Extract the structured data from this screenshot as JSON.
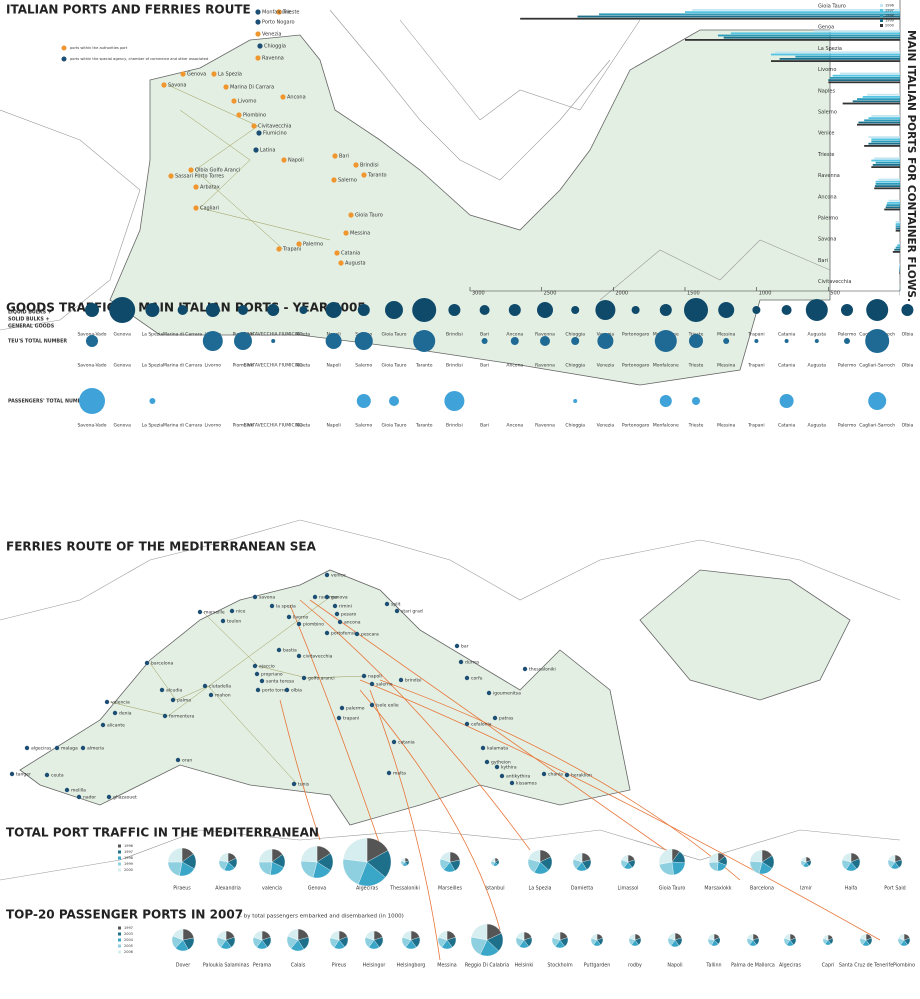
{
  "italian_map": {
    "title": "ITALIAN PORTS AND FERRIES ROUTE",
    "legend": [
      {
        "label": "ports within the authorities port",
        "color": "#f0962e"
      },
      {
        "label": "ports within the special agency, chamber of commerce and other associated",
        "color": "#1d4e73"
      }
    ],
    "ports": [
      {
        "name": "Trieste",
        "color": "#f0962e"
      },
      {
        "name": "Monfalcone",
        "color": "#1d4e73"
      },
      {
        "name": "Porto Nogaro",
        "color": "#1d4e73"
      },
      {
        "name": "Venezia",
        "color": "#f0962e"
      },
      {
        "name": "Chioggia",
        "color": "#1d4e73"
      },
      {
        "name": "Ravenna",
        "color": "#f0962e"
      },
      {
        "name": "Ancona",
        "color": "#f0962e"
      },
      {
        "name": "Genova",
        "color": "#f0962e"
      },
      {
        "name": "La Spezia",
        "color": "#f0962e"
      },
      {
        "name": "Savona",
        "color": "#f0962e"
      },
      {
        "name": "Marina Di Carrara",
        "color": "#f0962e"
      },
      {
        "name": "Livorno",
        "color": "#f0962e"
      },
      {
        "name": "Piombino",
        "color": "#f0962e"
      },
      {
        "name": "Civitavecchia",
        "color": "#f0962e"
      },
      {
        "name": "Fiumicino",
        "color": "#1d4e73"
      },
      {
        "name": "Latina",
        "color": "#1d4e73"
      },
      {
        "name": "Napoli",
        "color": "#f0962e"
      },
      {
        "name": "Salerno",
        "color": "#f0962e"
      },
      {
        "name": "Bari",
        "color": "#f0962e"
      },
      {
        "name": "Brindisi",
        "color": "#f0962e"
      },
      {
        "name": "Taranto",
        "color": "#f0962e"
      },
      {
        "name": "Olbia Golfo Aranci",
        "color": "#f0962e"
      },
      {
        "name": "Sassari Porto Torres",
        "color": "#f0962e"
      },
      {
        "name": "Arbatax",
        "color": "#f0962e"
      },
      {
        "name": "Cagliari",
        "color": "#f0962e"
      },
      {
        "name": "Gioia Tauro",
        "color": "#f0962e"
      },
      {
        "name": "Messina",
        "color": "#f0962e"
      },
      {
        "name": "Palermo",
        "color": "#f0962e"
      },
      {
        "name": "Trapani",
        "color": "#f0962e"
      },
      {
        "name": "Catania",
        "color": "#f0962e"
      },
      {
        "name": "Augusta",
        "color": "#f0962e"
      }
    ]
  },
  "container_chart": {
    "type": "bar",
    "title": "MAIN ITALIAN PORTS FOR CONTAINER FLOWS.",
    "categories": [
      "Gioia Tauro",
      "Genoa",
      "La Spezia",
      "Livorno",
      "Naples",
      "Salerno",
      "Venice",
      "Trieste",
      "Ravenna",
      "Ancona",
      "Palermo",
      "Savona",
      "Bari",
      "Civitavecchia"
    ],
    "series": [
      {
        "name": "1996",
        "color": "#c4e6f1",
        "values": [
          1450,
          600,
          870,
          420,
          230,
          200,
          220,
          180,
          150,
          80,
          30,
          10,
          5,
          2
        ]
      },
      {
        "name": "1997",
        "color": "#55c4e2",
        "values": [
          1500,
          1180,
          900,
          470,
          260,
          220,
          200,
          200,
          170,
          90,
          30,
          20,
          5,
          2
        ]
      },
      {
        "name": "1998",
        "color": "#2a9ab8",
        "values": [
          2100,
          1270,
          730,
          490,
          300,
          250,
          200,
          170,
          170,
          95,
          30,
          30,
          5,
          2
        ]
      },
      {
        "name": "1999",
        "color": "#1a6e8a",
        "values": [
          2250,
          1230,
          840,
          500,
          330,
          290,
          220,
          190,
          175,
          100,
          30,
          40,
          5,
          2
        ]
      },
      {
        "name": "2000",
        "color": "#333333",
        "values": [
          2650,
          1500,
          900,
          500,
          400,
          300,
          250,
          200,
          180,
          110,
          30,
          50,
          5,
          2
        ]
      }
    ],
    "xlim": [
      0,
      3000
    ],
    "xticks": [
      3000,
      2500,
      2000,
      1500,
      1000,
      500
    ]
  },
  "goods_traffic": {
    "title": "GOODS TRAFFIC IN MAIN ITALIAN PORTS - YEAR 2005",
    "ports": [
      "Savona-Vado",
      "Genova",
      "La Spezia",
      "Marina di Carrara",
      "Livorno",
      "Piombino",
      "CIVITAVECCHIA FIUMICINO",
      "Gaeta",
      "Napoli",
      "Salerno",
      "Gioia Tauro",
      "Taranto",
      "Brindisi",
      "Bari",
      "Ancona",
      "Ravenna",
      "Chioggia",
      "Venezia",
      "Portonogaro",
      "Monfalcone",
      "Trieste",
      "Messina",
      "Trapani",
      "Catania",
      "Augusta",
      "Palermo",
      "Cagliari-Sarroch",
      "Olbia"
    ],
    "rows": [
      {
        "label": [
          "LIQUID BULKS +",
          "SOLID BULKS +",
          "GENERAL GOODS"
        ],
        "color": "#0f4a6b",
        "sizes": [
          7,
          13,
          7,
          5,
          7,
          5,
          6,
          4,
          8,
          6,
          9,
          12,
          6,
          5,
          6,
          8,
          4,
          10,
          4,
          6,
          12,
          8,
          4,
          5,
          11,
          6,
          11,
          6
        ]
      },
      {
        "label": [
          "TEU'S TOTAL NUMBER"
        ],
        "color": "#1f6a94",
        "sizes": [
          6,
          null,
          null,
          null,
          10,
          9,
          2,
          null,
          8,
          9,
          null,
          11,
          null,
          3,
          4,
          5,
          4,
          8,
          null,
          11,
          7,
          3,
          2,
          2,
          2,
          3,
          12,
          null
        ]
      },
      {
        "label": [
          "PASSENGERS' TOTAL NUMBER"
        ],
        "color": "#3fa2d8",
        "sizes": [
          13,
          null,
          3,
          null,
          null,
          null,
          null,
          null,
          null,
          7,
          5,
          null,
          10,
          null,
          null,
          null,
          2,
          null,
          null,
          6,
          4,
          null,
          null,
          7,
          null,
          null,
          9,
          null
        ]
      }
    ]
  },
  "ferries_map": {
    "title": "FERRIES ROUTE OF THE MEDITERRANEAN SEA",
    "ports": [
      "venice",
      "ravenna",
      "genova",
      "savona",
      "la spezia",
      "livorno",
      "piombino",
      "portoferraio",
      "rimini",
      "pesaro",
      "ancona",
      "split",
      "stari grad",
      "pescara",
      "bar",
      "durres",
      "brindisi",
      "corfu",
      "igoumenitsa",
      "patras",
      "cefalonia",
      "kalamata",
      "gytheion",
      "kythira",
      "antikythira",
      "kissamos",
      "chania",
      "heraklion",
      "thessaloniki",
      "marseille",
      "nice",
      "toulon",
      "barcelona",
      "valencia",
      "denia",
      "alicante",
      "almeria",
      "malaga",
      "algeciras",
      "tanger",
      "ceuta",
      "melilla",
      "nador",
      "ghazaouet",
      "oran",
      "alcudia",
      "ciutadella",
      "mahon",
      "palma",
      "formentera",
      "bastia",
      "ajaccio",
      "propriano",
      "santa teresa",
      "porto torres",
      "olbia",
      "golfo aranci",
      "civitavecchia",
      "napoli",
      "salerno",
      "isole eolie",
      "palermo",
      "trapani",
      "catania",
      "malta",
      "tunis"
    ]
  },
  "port_traffic": {
    "type": "pie",
    "title": "TOTAL PORT TRAFFIC IN THE MEDITERRANEAN",
    "legend": [
      {
        "name": "1996",
        "color": "#555555"
      },
      {
        "name": "1997",
        "color": "#1d6f8a"
      },
      {
        "name": "1998",
        "color": "#3aa6c8"
      },
      {
        "name": "1999",
        "color": "#8fd0e0"
      },
      {
        "name": "2000",
        "color": "#d7eef0"
      }
    ],
    "pies": [
      {
        "name": "Piraeus",
        "size": 14,
        "values": [
          15,
          18,
          20,
          22,
          25
        ]
      },
      {
        "name": "Alexandria",
        "size": 9,
        "values": [
          18,
          19,
          20,
          21,
          22
        ]
      },
      {
        "name": "valencia",
        "size": 13,
        "values": [
          15,
          17,
          20,
          23,
          25
        ]
      },
      {
        "name": "Genova",
        "size": 16,
        "values": [
          16,
          18,
          20,
          22,
          24
        ]
      },
      {
        "name": "Algeciras",
        "size": 24,
        "values": [
          17,
          19,
          20,
          21,
          23
        ]
      },
      {
        "name": "Thessaloniki",
        "size": 4,
        "values": [
          20,
          20,
          20,
          20,
          20
        ]
      },
      {
        "name": "Marseilles",
        "size": 10,
        "values": [
          22,
          20,
          19,
          19,
          20
        ]
      },
      {
        "name": "Istanbul",
        "size": 4,
        "values": [
          18,
          19,
          20,
          21,
          22
        ]
      },
      {
        "name": "La Spezia",
        "size": 12,
        "values": [
          18,
          19,
          21,
          21,
          21
        ]
      },
      {
        "name": "Damietta",
        "size": 9,
        "values": [
          21,
          20,
          20,
          19,
          20
        ]
      },
      {
        "name": "Limassol",
        "size": 7,
        "values": [
          20,
          20,
          20,
          20,
          20
        ]
      },
      {
        "name": "Gioia Tauro",
        "size": 13,
        "values": [
          10,
          16,
          22,
          24,
          28
        ]
      },
      {
        "name": "Marsaxlokk",
        "size": 9,
        "values": [
          14,
          17,
          20,
          23,
          26
        ]
      },
      {
        "name": "Barcelona",
        "size": 12,
        "values": [
          16,
          18,
          20,
          22,
          24
        ]
      },
      {
        "name": "Izmir",
        "size": 5,
        "values": [
          20,
          20,
          20,
          20,
          20
        ]
      },
      {
        "name": "Haifa",
        "size": 9,
        "values": [
          19,
          20,
          20,
          20,
          21
        ]
      },
      {
        "name": "Port Said",
        "size": 7,
        "values": [
          20,
          20,
          20,
          20,
          20
        ]
      }
    ]
  },
  "passenger_ports": {
    "type": "pie",
    "title": "TOP-20 PASSENGER PORTS IN 2007",
    "subtitle": "- by total passengers embarked and disembarked (in 1000)",
    "legend": [
      {
        "name": "1997",
        "color": "#555555"
      },
      {
        "name": "2003",
        "color": "#1d6f8a"
      },
      {
        "name": "2004",
        "color": "#3aa6c8"
      },
      {
        "name": "2005",
        "color": "#8fd0e0"
      },
      {
        "name": "2006",
        "color": "#d7eef0"
      }
    ],
    "pies": [
      {
        "name": "Dover",
        "size": 11,
        "values": [
          22,
          20,
          20,
          19,
          19
        ]
      },
      {
        "name": "Paloukia Salaminas",
        "size": 9,
        "values": [
          20,
          20,
          20,
          20,
          20
        ]
      },
      {
        "name": "Perama",
        "size": 9,
        "values": [
          20,
          20,
          20,
          20,
          20
        ]
      },
      {
        "name": "Calais",
        "size": 11,
        "values": [
          21,
          20,
          20,
          20,
          19
        ]
      },
      {
        "name": "Pireus",
        "size": 9,
        "values": [
          19,
          20,
          20,
          20,
          21
        ]
      },
      {
        "name": "Helsingor",
        "size": 9,
        "values": [
          20,
          20,
          20,
          20,
          20
        ]
      },
      {
        "name": "Helsingborg",
        "size": 9,
        "values": [
          20,
          20,
          20,
          20,
          20
        ]
      },
      {
        "name": "Messina",
        "size": 9,
        "values": [
          20,
          20,
          20,
          20,
          20
        ]
      },
      {
        "name": "Reggio Di Calabria",
        "size": 16,
        "values": [
          18,
          19,
          20,
          21,
          22
        ]
      },
      {
        "name": "Helsinki",
        "size": 8,
        "values": [
          20,
          20,
          20,
          20,
          20
        ]
      },
      {
        "name": "Stockholm",
        "size": 8,
        "values": [
          20,
          20,
          20,
          20,
          20
        ]
      },
      {
        "name": "Puttgarden",
        "size": 6,
        "values": [
          20,
          20,
          20,
          20,
          20
        ]
      },
      {
        "name": "rodby",
        "size": 6,
        "values": [
          20,
          20,
          20,
          20,
          20
        ]
      },
      {
        "name": "Napoli",
        "size": 7,
        "values": [
          20,
          20,
          20,
          20,
          20
        ]
      },
      {
        "name": "Tallinn",
        "size": 6,
        "values": [
          18,
          19,
          20,
          21,
          22
        ]
      },
      {
        "name": "Palma de Mallorca",
        "size": 6,
        "values": [
          20,
          20,
          20,
          20,
          20
        ]
      },
      {
        "name": "Algeciras",
        "size": 6,
        "values": [
          20,
          20,
          20,
          20,
          20
        ]
      },
      {
        "name": "Capri",
        "size": 5,
        "values": [
          20,
          20,
          20,
          20,
          20
        ]
      },
      {
        "name": "Santa Cruz de Tenerife",
        "size": 6,
        "values": [
          20,
          20,
          20,
          20,
          20
        ]
      },
      {
        "name": "Piombino",
        "size": 6,
        "values": [
          20,
          20,
          20,
          20,
          20
        ]
      }
    ]
  }
}
